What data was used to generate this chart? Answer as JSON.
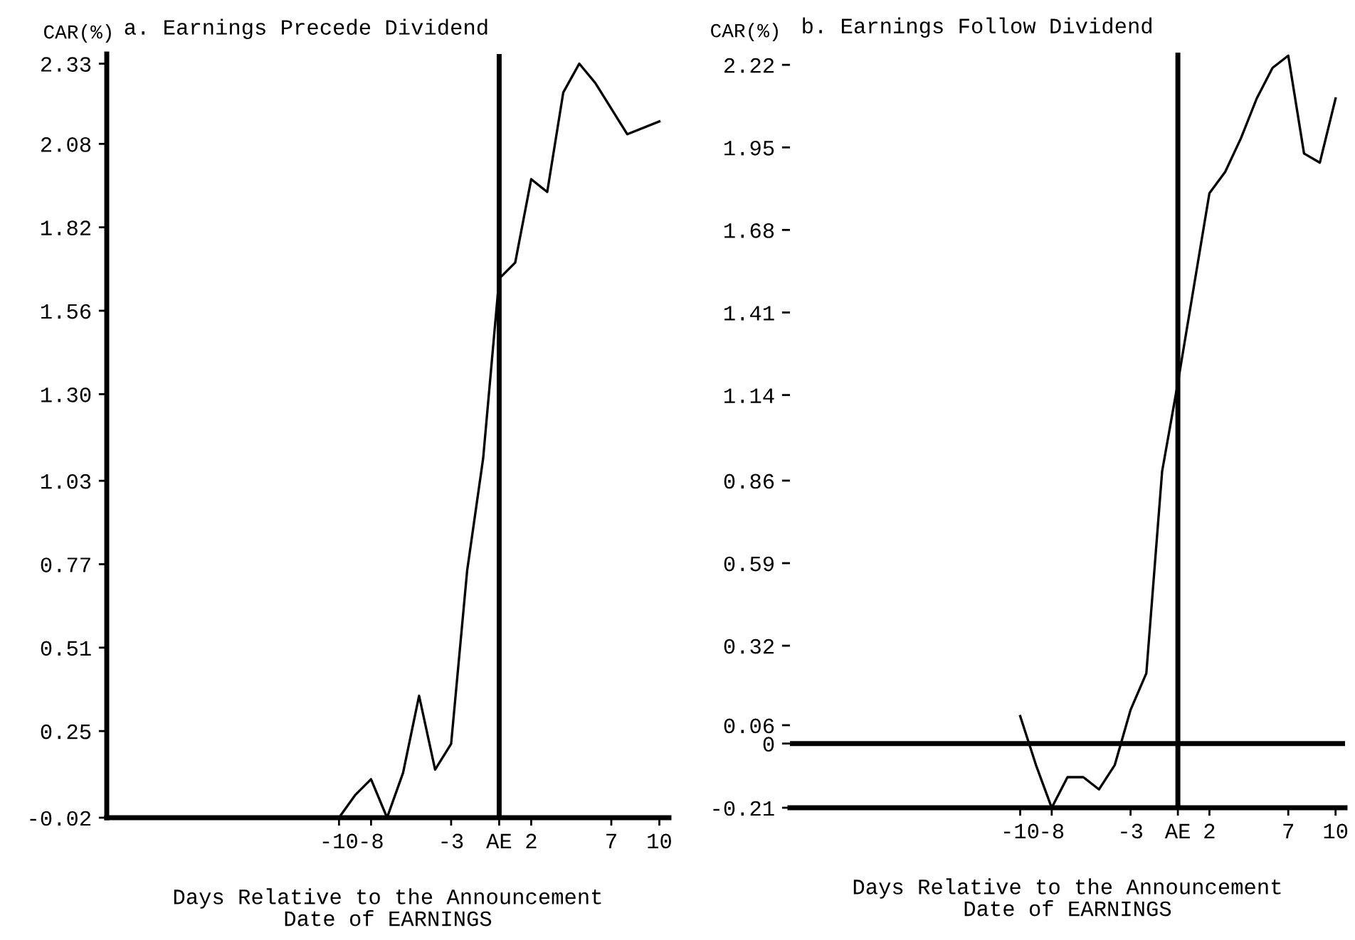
{
  "chart_data": [
    {
      "type": "line",
      "title": "a. Earnings Precede Dividend",
      "ylabel": "CAR(%)",
      "xlabel": "Days Relative to the Announcement\nDate of EARNINGS",
      "series": [
        {
          "color": "#000000",
          "x": [
            -10,
            -9,
            -8,
            -7,
            -6,
            -5,
            -4,
            -3,
            -2,
            -1,
            0,
            1,
            2,
            3,
            4,
            5,
            6,
            8,
            10
          ],
          "values": [
            -0.02,
            0.05,
            0.1,
            -0.02,
            0.12,
            0.36,
            0.13,
            0.21,
            0.75,
            1.1,
            1.66,
            1.71,
            1.97,
            1.93,
            2.24,
            2.33,
            2.27,
            2.11,
            2.15
          ]
        }
      ],
      "xlim": [
        -24.5,
        10.6
      ],
      "ylim": [
        -0.02,
        2.36
      ],
      "xticks": [
        -10,
        -8,
        -3,
        {
          "value": 0,
          "label": "AE"
        },
        2,
        7,
        10
      ],
      "yticks": [
        -0.02,
        0.25,
        0.51,
        0.77,
        1.03,
        {
          "value": 1.3,
          "label": "1.30"
        },
        1.56,
        1.82,
        2.08,
        2.33
      ],
      "ref_lines": [
        {
          "axis": "x",
          "value": 0,
          "label": null
        }
      ],
      "grid": false,
      "legend": false,
      "marker": "none",
      "line_style": "solid"
    },
    {
      "type": "line",
      "title": "b. Earnings Follow Dividend",
      "ylabel": "CAR(%)",
      "xlabel": "Days Relative to the Announcement\nDate of EARNINGS",
      "series": [
        {
          "color": "#000000",
          "x": [
            -10,
            -9,
            -8,
            -7,
            -6,
            -5,
            -4,
            -3,
            -2,
            -1,
            0,
            1,
            2,
            3,
            4,
            5,
            6,
            7,
            8,
            9,
            10
          ],
          "values": [
            0.09,
            -0.07,
            -0.21,
            -0.11,
            -0.11,
            -0.15,
            -0.07,
            0.11,
            0.23,
            0.89,
            1.18,
            1.49,
            1.8,
            1.87,
            1.98,
            2.11,
            2.21,
            2.25,
            1.93,
            1.9,
            2.11
          ]
        }
      ],
      "xlim": [
        -24.6,
        10.6
      ],
      "ylim": [
        -0.21,
        2.26
      ],
      "xticks": [
        -10,
        -8,
        -3,
        {
          "value": 0,
          "label": "AE"
        },
        2,
        7,
        10
      ],
      "yticks": [
        -0.21,
        0,
        0.06,
        0.32,
        0.59,
        0.86,
        1.14,
        1.41,
        1.68,
        1.95,
        2.22
      ],
      "ref_lines": [
        {
          "axis": "x",
          "value": 0,
          "label": null
        },
        {
          "axis": "y",
          "value": 0,
          "label": null
        }
      ],
      "grid": false,
      "legend": false,
      "marker": "none",
      "line_style": "solid"
    }
  ]
}
